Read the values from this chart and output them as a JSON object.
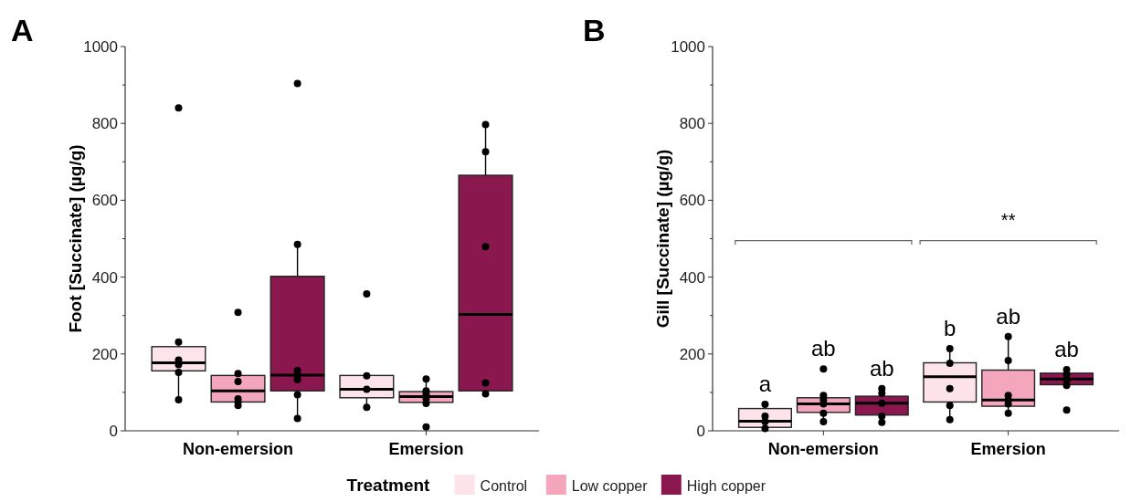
{
  "chart_data": [
    {
      "type": "box",
      "title": "A",
      "ylabel": "Foot [Succinate] (µg/g)",
      "categories": [
        "Non-emersion",
        "Emersion"
      ],
      "ylim": [
        0,
        1000
      ],
      "yticks": [
        0,
        {
          "value": 100,
          "label": null
        },
        200,
        {
          "value": 300,
          "label": null
        },
        400,
        {
          "value": 500,
          "label": null
        },
        600,
        {
          "value": 700,
          "label": null
        },
        800,
        {
          "value": 900,
          "label": null
        },
        1000
      ],
      "legend": "bottom",
      "legend_title": "Treatment",
      "series": [
        {
          "name": "Control",
          "color": "#fde4ea",
          "boxes": [
            {
              "low": 81,
              "q1": 156,
              "median": 177,
              "q3": 219,
              "high": 231
            },
            {
              "low": 61,
              "q1": 86,
              "median": 108,
              "q3": 144,
              "high": 143
            }
          ]
        },
        {
          "name": "Low copper",
          "color": "#f4a6bd",
          "boxes": [
            {
              "low": 66,
              "q1": 75,
              "median": 104,
              "q3": 144,
              "high": 149
            },
            {
              "low": 71,
              "q1": 74,
              "median": 89,
              "q3": 102,
              "high": 135
            }
          ]
        },
        {
          "name": "High copper",
          "color": "#8b174f",
          "boxes": [
            {
              "low": 32,
              "q1": 104,
              "median": 145,
              "q3": 402,
              "high": 485
            },
            {
              "low": 96,
              "q1": 104,
              "median": 303,
              "q3": 665,
              "high": 797
            }
          ]
        },
        {
          "type": "scatter",
          "color": "#000000",
          "x": [
            "Non-emersion",
            "Non-emersion",
            "Non-emersion",
            "Non-emersion",
            "Non-emersion",
            "Non-emersion",
            "Emersion",
            "Emersion",
            "Emersion",
            "Emersion"
          ],
          "values": [
            840,
            231,
            184,
            172,
            152,
            81,
            356,
            143,
            108,
            61
          ]
        },
        {
          "type": "scatter",
          "color": "#000000",
          "x": [
            "Non-emersion",
            "Non-emersion",
            "Non-emersion",
            "Non-emersion",
            "Non-emersion",
            "Non-emersion",
            "Emersion",
            "Emersion",
            "Emersion",
            "Emersion",
            "Emersion",
            "Emersion"
          ],
          "values": [
            308,
            149,
            128,
            83,
            75,
            66,
            135,
            104,
            95,
            83,
            71,
            10
          ]
        },
        {
          "type": "scatter",
          "color": "#000000",
          "x": [
            "Non-emersion",
            "Non-emersion",
            "Non-emersion",
            "Non-emersion",
            "Non-emersion",
            "Non-emersion",
            "Non-emersion",
            "Emersion",
            "Emersion",
            "Emersion",
            "Emersion",
            "Emersion"
          ],
          "values": [
            904,
            485,
            157,
            145,
            133,
            94,
            32,
            797,
            726,
            479,
            125,
            96
          ]
        }
      ]
    },
    {
      "type": "box",
      "title": "B",
      "ylabel": "Gill [Succinate] (µg/g)",
      "categories": [
        "Non-emersion",
        "Emersion"
      ],
      "ylim": [
        0,
        1000
      ],
      "yticks": [
        0,
        {
          "value": 100,
          "label": null
        },
        200,
        {
          "value": 300,
          "label": null
        },
        400,
        {
          "value": 500,
          "label": null
        },
        600,
        {
          "value": 700,
          "label": null
        },
        800,
        {
          "value": 900,
          "label": null
        },
        1000
      ],
      "annotations": [
        "**"
      ],
      "series": [
        {
          "color": "#fde4ea",
          "value_labels": [
            "a",
            "b"
          ],
          "boxes": [
            {
              "low": 6,
              "q1": 9,
              "median": 25,
              "q3": 58,
              "high": 69
            },
            {
              "low": 29,
              "q1": 75,
              "median": 141,
              "q3": 177,
              "high": 214
            }
          ]
        },
        {
          "color": "#f4a6bd",
          "value_labels": [
            "ab",
            "ab"
          ],
          "boxes": [
            {
              "low": 24,
              "q1": 48,
              "median": 70,
              "q3": 86,
              "high": 92
            },
            {
              "low": 46,
              "q1": 64,
              "median": 80,
              "q3": 158,
              "high": 245
            }
          ]
        },
        {
          "color": "#8b174f",
          "value_labels": [
            "ab",
            "ab"
          ],
          "boxes": [
            {
              "low": 22,
              "q1": 41,
              "median": 72,
              "q3": 90,
              "high": 110
            },
            {
              "low": 118,
              "q1": 120,
              "median": 135,
              "q3": 150,
              "high": 159
            }
          ]
        },
        {
          "type": "scatter",
          "color": "#000000",
          "x": [
            "Non-emersion",
            "Non-emersion",
            "Non-emersion",
            "Non-emersion",
            "Emersion",
            "Emersion",
            "Emersion",
            "Emersion",
            "Emersion"
          ],
          "values": [
            69,
            38,
            24,
            6,
            214,
            176,
            110,
            66,
            29
          ]
        },
        {
          "type": "scatter",
          "color": "#000000",
          "x": [
            "Non-emersion",
            "Non-emersion",
            "Non-emersion",
            "Non-emersion",
            "Non-emersion",
            "Non-emersion",
            "Emersion",
            "Emersion",
            "Emersion",
            "Emersion",
            "Emersion",
            "Emersion"
          ],
          "values": [
            161,
            92,
            80,
            70,
            46,
            24,
            245,
            183,
            92,
            80,
            70,
            46
          ]
        },
        {
          "type": "scatter",
          "color": "#000000",
          "x": [
            "Non-emersion",
            "Non-emersion",
            "Non-emersion",
            "Non-emersion",
            "Non-emersion",
            "Emersion",
            "Emersion",
            "Emersion",
            "Emersion",
            "Emersion"
          ],
          "values": [
            110,
            98,
            72,
            38,
            22,
            159,
            146,
            132,
            118,
            54
          ]
        }
      ]
    }
  ]
}
